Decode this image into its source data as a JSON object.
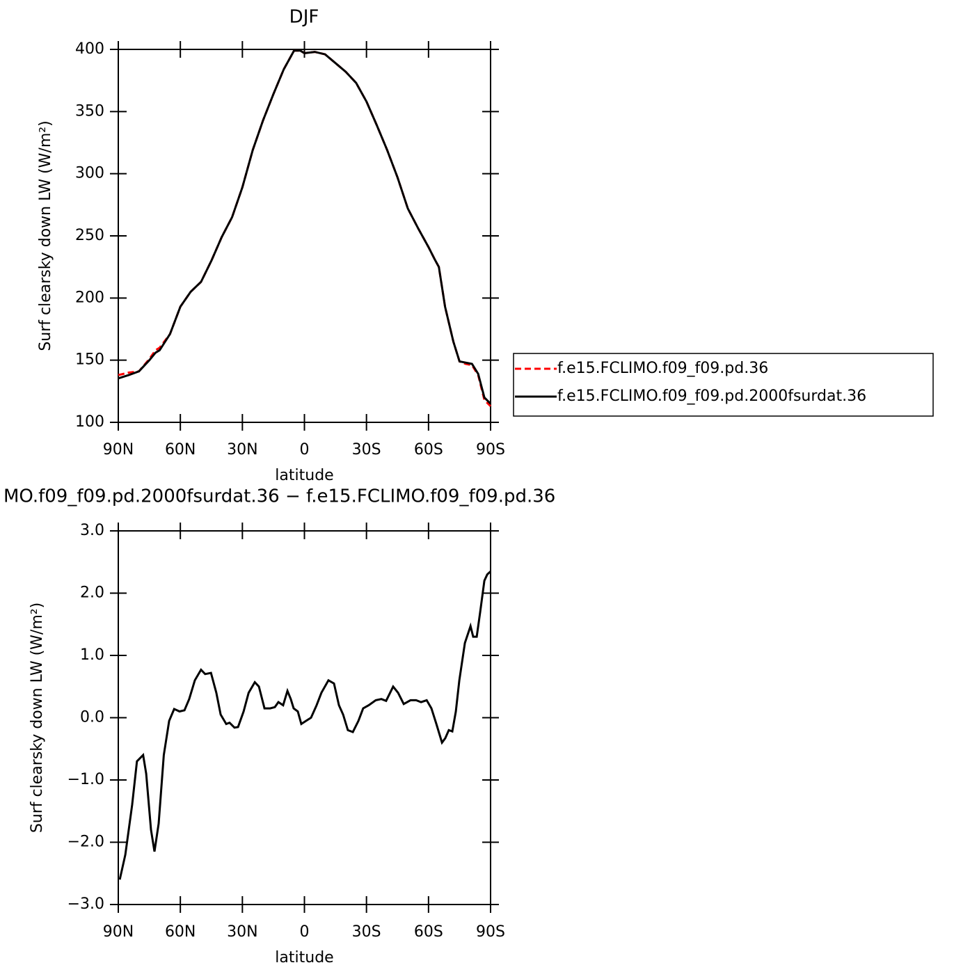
{
  "chart_data": [
    {
      "type": "line",
      "title": "DJF",
      "xlabel": "latitude",
      "ylabel": "Surf clearsky down LW (W/m²)",
      "x": [
        90,
        85,
        80,
        75,
        72,
        70,
        65,
        60,
        55,
        50,
        45,
        40,
        35,
        30,
        25,
        20,
        15,
        10,
        5,
        2,
        0,
        -5,
        -10,
        -15,
        -20,
        -25,
        -30,
        -35,
        -40,
        -45,
        -50,
        -55,
        -60,
        -63,
        -65,
        -68,
        -72,
        -75,
        -78,
        -81,
        -84,
        -87,
        -90
      ],
      "xlim": [
        90,
        -90
      ],
      "xticks": [
        {
          "value": 90,
          "label": "90N"
        },
        {
          "value": 60,
          "label": "60N"
        },
        {
          "value": 30,
          "label": "30N"
        },
        0,
        {
          "value": -30,
          "label": "30S"
        },
        {
          "value": -60,
          "label": "60S"
        },
        {
          "value": -90,
          "label": "90S"
        }
      ],
      "ylim": [
        100,
        400
      ],
      "yticks": [
        100,
        150,
        200,
        250,
        300,
        350,
        400
      ],
      "legend": "right",
      "series": [
        {
          "name": "f.e15.FCLIMO.f09_f09.pd.36",
          "color": "#ff0000",
          "dash": "dashed",
          "values": [
            138,
            140,
            141,
            151,
            158,
            160,
            171,
            193,
            205,
            213,
            230,
            249,
            265,
            289,
            319,
            343,
            364,
            384,
            399,
            399,
            397,
            398,
            396,
            389,
            382,
            373,
            358,
            339,
            319,
            297,
            272,
            256,
            241,
            231,
            225,
            193,
            165,
            149,
            147,
            146,
            138,
            118,
            113
          ]
        },
        {
          "name": "f.e15.FCLIMO.f09_f09.pd.2000fsurdat.36",
          "color": "#000000",
          "dash": "solid",
          "values": [
            135.4,
            138,
            141,
            150,
            156,
            158,
            171,
            193,
            205,
            213,
            230,
            249,
            265,
            289,
            319,
            343,
            364,
            384,
            399,
            399,
            397,
            398,
            396,
            389,
            382,
            373,
            358,
            339,
            319,
            297,
            272,
            256,
            241,
            231,
            225,
            193,
            165,
            149,
            148,
            147,
            139,
            120,
            115
          ]
        }
      ]
    },
    {
      "type": "line",
      "title": "MO.f09_f09.pd.2000fsurdat.36 − f.e15.FCLIMO.f09_f09.pd.36",
      "xlabel": "latitude",
      "ylabel": "Surf clearsky down LW (W/m²)",
      "x": [
        89.3,
        86.6,
        83.3,
        81,
        78,
        76.5,
        74.2,
        72.5,
        70.5,
        68,
        65.4,
        63,
        60.4,
        58,
        55.7,
        53,
        50,
        48,
        45.2,
        42.6,
        40.5,
        37.8,
        36.2,
        33.8,
        32.1,
        29.4,
        27,
        24,
        22,
        19.3,
        16.6,
        14.3,
        12.6,
        10.3,
        8.2,
        6.6,
        5.2,
        3.2,
        1.5,
        -0.8,
        -3.2,
        -5.9,
        -8.2,
        -11.6,
        -14.3,
        -16.7,
        -18.7,
        -21,
        -23.4,
        -26.1,
        -28.4,
        -31.1,
        -34.5,
        -37.2,
        -39.5,
        -42.9,
        -45.3,
        -48,
        -51.3,
        -54,
        -56.4,
        -59.1,
        -61.4,
        -63.8,
        -66.5,
        -68.1,
        -69.8,
        -71.5,
        -73.2,
        -74.9,
        -77.6,
        -80.3,
        -81.6,
        -83.3,
        -85,
        -87,
        -88.4,
        -90
      ],
      "values": [
        -2.6,
        -2.2,
        -1.4,
        -0.7,
        -0.6,
        -0.9,
        -1.8,
        -2.15,
        -1.7,
        -0.6,
        -0.05,
        0.14,
        0.1,
        0.12,
        0.3,
        0.6,
        0.77,
        0.7,
        0.72,
        0.4,
        0.05,
        -0.1,
        -0.08,
        -0.16,
        -0.15,
        0.1,
        0.4,
        0.57,
        0.5,
        0.15,
        0.15,
        0.17,
        0.25,
        0.2,
        0.43,
        0.3,
        0.15,
        0.1,
        -0.1,
        -0.05,
        0,
        0.2,
        0.4,
        0.6,
        0.55,
        0.2,
        0.05,
        -0.2,
        -0.23,
        -0.05,
        0.15,
        0.2,
        0.28,
        0.3,
        0.27,
        0.5,
        0.4,
        0.22,
        0.28,
        0.28,
        0.25,
        0.28,
        0.15,
        -0.1,
        -0.4,
        -0.33,
        -0.2,
        -0.22,
        0.1,
        0.6,
        1.2,
        1.47,
        1.3,
        1.3,
        1.7,
        2.2,
        2.3,
        2.35
      ],
      "color": "#000000",
      "xlim": [
        90,
        -90
      ],
      "xticks": [
        {
          "value": 90,
          "label": "90N"
        },
        {
          "value": 60,
          "label": "60N"
        },
        {
          "value": 30,
          "label": "30N"
        },
        0,
        {
          "value": -30,
          "label": "30S"
        },
        {
          "value": -60,
          "label": "60S"
        },
        {
          "value": -90,
          "label": "90S"
        }
      ],
      "ylim": [
        -3,
        3
      ],
      "yticks": [
        {
          "value": -3,
          "label": "−3.0"
        },
        {
          "value": -2,
          "label": "−2.0"
        },
        {
          "value": -1,
          "label": "−1.0"
        },
        {
          "value": 0,
          "label": "0.0"
        },
        {
          "value": 1,
          "label": "1.0"
        },
        {
          "value": 2,
          "label": "2.0"
        },
        {
          "value": 3,
          "label": "3.0"
        }
      ]
    }
  ]
}
